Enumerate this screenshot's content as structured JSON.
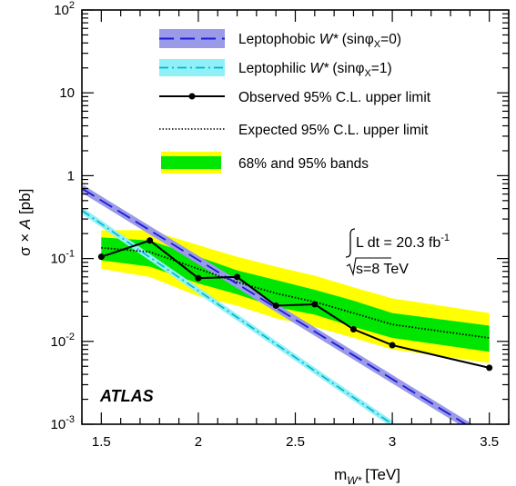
{
  "chart_data": {
    "type": "line",
    "xlabel": "m",
    "xlabel_sub": "W*",
    "xlabel_unit": "[TeV]",
    "ylabel_main": "σ × ",
    "ylabel_var": "A",
    "ylabel_unit": " [pb]",
    "xlim": [
      1.4,
      3.6
    ],
    "ylim": [
      0.001,
      100
    ],
    "yscale": "log",
    "x_ticks": [
      1.5,
      2,
      2.5,
      3,
      3.5
    ],
    "x_tick_labels": [
      "1.5",
      "2",
      "2.5",
      "3",
      "3.5"
    ],
    "y_ticks": [
      {
        "value": 100,
        "base": "10",
        "exp": "2"
      },
      {
        "value": 10,
        "base": "10",
        "exp": ""
      },
      {
        "value": 1,
        "base": "1",
        "exp": ""
      },
      {
        "value": 0.1,
        "base": "10",
        "exp": "-1"
      },
      {
        "value": 0.01,
        "base": "10",
        "exp": "-2"
      },
      {
        "value": 0.001,
        "base": "10",
        "exp": "-3"
      }
    ],
    "series": [
      {
        "name": "Leptophobic W* (sinφX=0)",
        "style": "theory-band-dashed",
        "color": "#1a1ad9",
        "band_color": "#9a9ae8",
        "x": [
          1.4,
          3.6
        ],
        "y": [
          0.7,
          0.00048
        ]
      },
      {
        "name": "Leptophilic W* (sinφX=1)",
        "style": "theory-band-dashdot",
        "color": "#00b4c8",
        "band_color": "#8ff0f8",
        "x": [
          1.4,
          3.0
        ],
        "y": [
          0.38,
          0.001
        ]
      },
      {
        "name": "Observed 95% C.L. upper limit",
        "style": "solid-markers",
        "color": "#000000",
        "x": [
          1.5,
          1.75,
          2.0,
          2.2,
          2.4,
          2.6,
          2.8,
          3.0,
          3.5
        ],
        "y": [
          0.105,
          0.165,
          0.058,
          0.06,
          0.027,
          0.028,
          0.014,
          0.009,
          0.0048
        ]
      },
      {
        "name": "Expected 95% C.L. upper limit",
        "style": "dotted",
        "color": "#000000",
        "x": [
          1.5,
          1.75,
          2.0,
          2.2,
          2.4,
          2.6,
          2.8,
          3.0,
          3.5
        ],
        "y": [
          0.135,
          0.12,
          0.075,
          0.052,
          0.038,
          0.03,
          0.022,
          0.016,
          0.011
        ]
      }
    ],
    "bands": {
      "name": "68% and 95% bands",
      "x": [
        1.5,
        1.75,
        2.0,
        2.2,
        2.4,
        2.6,
        2.8,
        3.0,
        3.5
      ],
      "inner_color": "#00e600",
      "outer_color": "#ffff00",
      "band68_lo": [
        0.095,
        0.08,
        0.05,
        0.037,
        0.026,
        0.021,
        0.015,
        0.011,
        0.0075
      ],
      "band68_hi": [
        0.18,
        0.165,
        0.105,
        0.072,
        0.055,
        0.042,
        0.031,
        0.022,
        0.0155
      ],
      "band95_lo": [
        0.075,
        0.06,
        0.035,
        0.027,
        0.019,
        0.015,
        0.011,
        0.008,
        0.0055
      ],
      "band95_hi": [
        0.22,
        0.22,
        0.145,
        0.105,
        0.08,
        0.062,
        0.045,
        0.033,
        0.022
      ]
    },
    "legend": [
      {
        "key": "phobic",
        "text": "Leptophobic ",
        "italic": "W*",
        "rest": " (sinφ",
        "sub": "X",
        "end": "=0)"
      },
      {
        "key": "philic",
        "text": "Leptophilic ",
        "italic": "W*",
        "rest": " (sinφ",
        "sub": "X",
        "end": "=1)"
      },
      {
        "key": "observed",
        "text": "Observed 95% C.L. upper limit"
      },
      {
        "key": "expected",
        "text": "Expected 95% C.L. upper limit"
      },
      {
        "key": "bands",
        "text": "68% and 95% bands"
      }
    ],
    "annotations": {
      "lumi_prefix": "L dt = 20.3 fb",
      "lumi_exp": "-1",
      "energy": "s=8 TeV",
      "experiment": "ATLAS"
    }
  }
}
